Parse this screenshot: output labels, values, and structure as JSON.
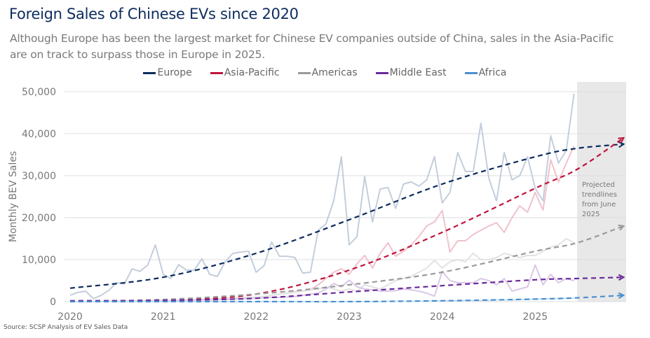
{
  "title": "Foreign Sales of Chinese EVs since 2020",
  "subtitle": "Although Europe has been the largest market for Chinese EV companies outside of China, sales in the Asia-Pacific are on track to surpass those in Europe in 2025.",
  "source": "Source: SCSP Analysis of EV Sales Data",
  "chart_data": {
    "type": "line",
    "title": "Foreign Sales of Chinese EVs since 2020",
    "xlabel": "",
    "ylabel": "Monthly BEV Sales",
    "xlim": [
      2020,
      2026
    ],
    "ylim": [
      0,
      50000
    ],
    "x_ticks": [
      "2020",
      "2021",
      "2022",
      "2023",
      "2024",
      "2025"
    ],
    "y_ticks": [
      "0",
      "10,000",
      "20,000",
      "30,000",
      "40,000",
      "50,000"
    ],
    "grid": true,
    "legend_position": "top-center",
    "x_start": "Jan 2020",
    "x_frequency": "monthly",
    "annotation": {
      "text_lines": [
        "Projected",
        "trendlines",
        "from June",
        "2025"
      ],
      "shaded_from": 2025.45,
      "shaded_to": 2026
    },
    "series": [
      {
        "name": "Europe",
        "color": "#0d2c5e",
        "raw_color": "#c3cedb",
        "values": [
          1500,
          2200,
          2500,
          700,
          1500,
          2700,
          4500,
          4200,
          7800,
          7200,
          8700,
          13500,
          6500,
          5500,
          8800,
          7500,
          7500,
          10200,
          6500,
          6000,
          9500,
          11500,
          11800,
          12000,
          7000,
          8500,
          14200,
          10800,
          10800,
          10500,
          6800,
          7000,
          17000,
          18500,
          24000,
          34500,
          13500,
          15500,
          29800,
          19000,
          26800,
          27200,
          22200,
          28000,
          28500,
          27500,
          29000,
          34500,
          23500,
          26000,
          35500,
          31000,
          31000,
          42500,
          29500,
          24000,
          35500,
          29000,
          30000,
          34500,
          27000,
          24000,
          39500,
          33000,
          36000,
          49500
        ],
        "trend": [
          [
            2020,
            3200
          ],
          [
            2021,
            5800
          ],
          [
            2022,
            11500
          ],
          [
            2023,
            19500
          ],
          [
            2024,
            28000
          ],
          [
            2025,
            34500
          ],
          [
            2025.45,
            36500
          ],
          [
            2025.95,
            37500
          ]
        ]
      },
      {
        "name": "Asia-Pacific",
        "color": "#c0143c",
        "raw_color": "#f0c2cd",
        "values": [
          0,
          0,
          0,
          0,
          0,
          100,
          100,
          100,
          100,
          200,
          200,
          200,
          200,
          200,
          300,
          300,
          300,
          400,
          400,
          500,
          500,
          600,
          700,
          900,
          1000,
          1200,
          1500,
          1800,
          2000,
          2300,
          2500,
          2800,
          4000,
          5500,
          7000,
          7800,
          6500,
          9000,
          11000,
          8000,
          11500,
          14000,
          10800,
          12000,
          13500,
          15500,
          18000,
          19000,
          21700,
          11800,
          14500,
          14500,
          16000,
          17000,
          18000,
          18800,
          16500,
          20000,
          22800,
          21300,
          26000,
          21800,
          33800,
          28500,
          33000,
          37000
        ],
        "trend": [
          [
            2020,
            0
          ],
          [
            2021,
            300
          ],
          [
            2022,
            1800
          ],
          [
            2023,
            7500
          ],
          [
            2024,
            16500
          ],
          [
            2025,
            27000
          ],
          [
            2025.45,
            31500
          ],
          [
            2025.95,
            39000
          ]
        ]
      },
      {
        "name": "Americas",
        "color": "#9a9a9a",
        "raw_color": "#e2e2e2",
        "values": [
          0,
          0,
          0,
          0,
          0,
          0,
          100,
          100,
          100,
          200,
          200,
          300,
          300,
          300,
          400,
          400,
          500,
          500,
          600,
          700,
          800,
          900,
          1000,
          1000,
          1100,
          1200,
          1500,
          1800,
          2000,
          2200,
          2500,
          2800,
          3000,
          3500,
          3000,
          2500,
          3000,
          2500,
          4000,
          3500,
          3000,
          4000,
          5000,
          5500,
          6000,
          7000,
          8000,
          9800,
          8000,
          9500,
          10000,
          9500,
          11500,
          10000,
          10000,
          10500,
          11500,
          11000,
          10500,
          11000,
          11000,
          12000,
          13000,
          13500,
          15000,
          14000
        ],
        "trend": [
          [
            2020,
            0
          ],
          [
            2021,
            500
          ],
          [
            2022,
            1800
          ],
          [
            2023,
            4000
          ],
          [
            2024,
            7000
          ],
          [
            2025,
            12000
          ],
          [
            2025.45,
            14000
          ],
          [
            2025.95,
            18000
          ]
        ]
      },
      {
        "name": "Middle East",
        "color": "#6a2a9a",
        "raw_color": "#dac8e8",
        "values": [
          0,
          0,
          0,
          0,
          0,
          0,
          0,
          100,
          100,
          100,
          200,
          200,
          200,
          200,
          300,
          300,
          300,
          400,
          400,
          500,
          500,
          600,
          600,
          700,
          800,
          900,
          1000,
          1000,
          1100,
          1200,
          1500,
          1800,
          2000,
          3000,
          4300,
          3500,
          5100,
          3500,
          3000,
          2800,
          2500,
          2500,
          2600,
          3000,
          2800,
          2500,
          2000,
          1300,
          7200,
          5000,
          4500,
          4500,
          4500,
          5500,
          5000,
          4000,
          5500,
          2500,
          3000,
          3500,
          8700,
          4000,
          6500,
          4500,
          5500,
          5000
        ],
        "trend": [
          [
            2020,
            200
          ],
          [
            2021,
            300
          ],
          [
            2022,
            800
          ],
          [
            2023,
            2300
          ],
          [
            2024,
            3800
          ],
          [
            2025,
            5200
          ],
          [
            2025.45,
            5500
          ],
          [
            2025.95,
            5800
          ]
        ]
      },
      {
        "name": "Africa",
        "color": "#4a90d0",
        "raw_color": "#c6ddf1",
        "values": [
          0,
          0,
          0,
          0,
          0,
          0,
          0,
          0,
          0,
          0,
          0,
          0,
          0,
          0,
          0,
          0,
          0,
          0,
          0,
          0,
          0,
          0,
          0,
          0,
          0,
          0,
          0,
          0,
          0,
          0,
          0,
          0,
          0,
          0,
          0,
          0,
          0,
          0,
          0,
          0,
          0,
          100,
          100,
          100,
          100,
          100,
          100,
          200,
          200,
          200,
          200,
          300,
          300,
          300,
          300,
          400,
          400,
          400,
          500,
          500,
          600,
          600,
          700,
          700,
          800,
          800
        ],
        "trend": [
          [
            2020,
            0
          ],
          [
            2022,
            0
          ],
          [
            2023,
            0
          ],
          [
            2024,
            200
          ],
          [
            2025,
            600
          ],
          [
            2025.45,
            900
          ],
          [
            2025.95,
            1500
          ]
        ]
      }
    ]
  }
}
